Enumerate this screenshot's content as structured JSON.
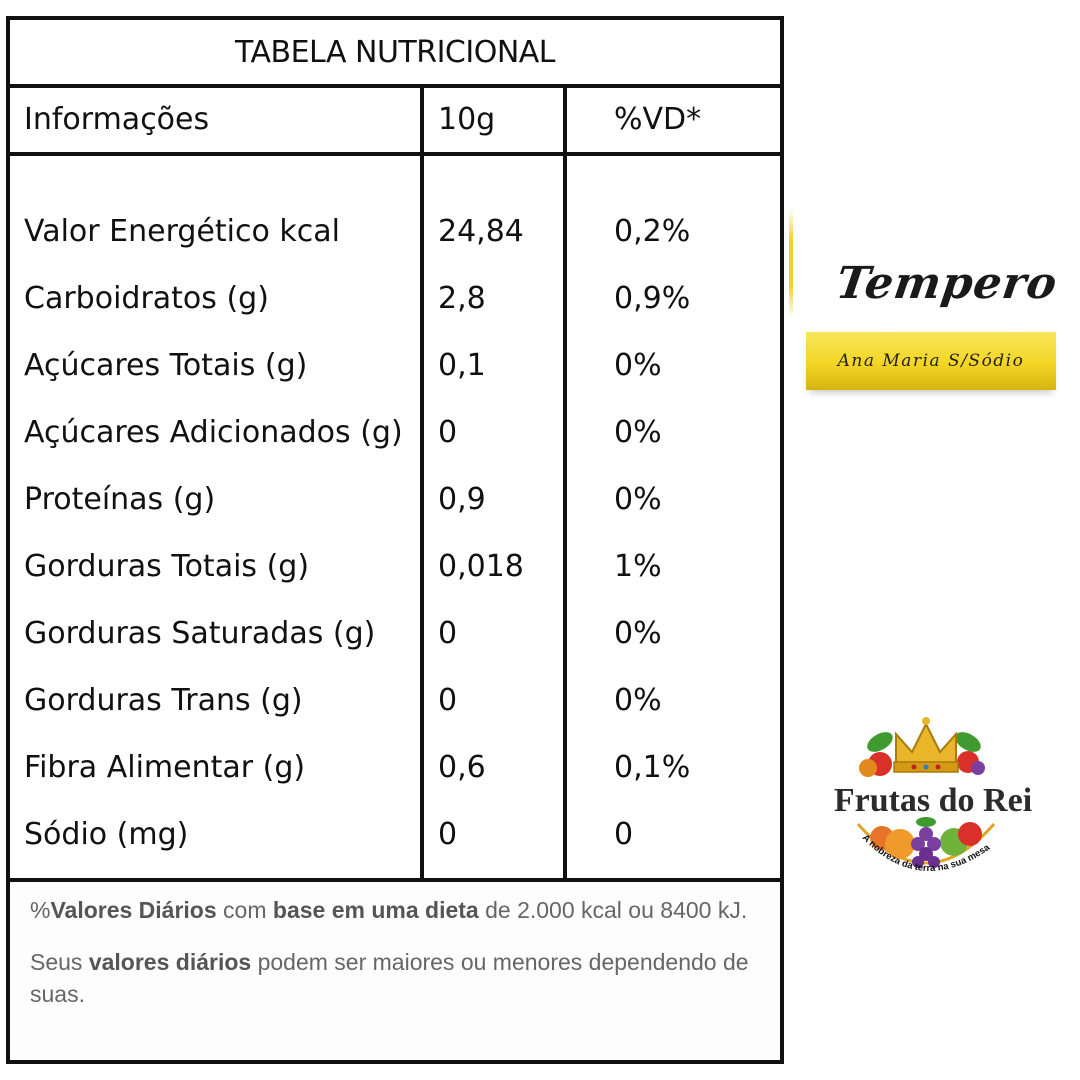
{
  "table": {
    "title": "TABELA NUTRICIONAL",
    "headers": [
      "Informações",
      "10g",
      "%VD*"
    ],
    "rows": [
      {
        "label": "Valor Energético kcal",
        "amount": "24,84",
        "vd": "0,2%"
      },
      {
        "label": "Carboidratos (g)",
        "amount": "2,8",
        "vd": "0,9%"
      },
      {
        "label": "Açúcares Totais (g)",
        "amount": "0,1",
        "vd": "0%"
      },
      {
        "label": "Açúcares Adicionados (g)",
        "amount": "0",
        "vd": "0%"
      },
      {
        "label": "Proteínas (g)",
        "amount": "0,9",
        "vd": "0%"
      },
      {
        "label": "Gorduras Totais (g)",
        "amount": "0,018",
        "vd": "1%"
      },
      {
        "label": "Gorduras Saturadas (g)",
        "amount": "0",
        "vd": "0%"
      },
      {
        "label": "Gorduras Trans (g)",
        "amount": "0",
        "vd": "0%"
      },
      {
        "label": "Fibra Alimentar (g)",
        "amount": "0,6",
        "vd": "0,1%"
      },
      {
        "label": "Sódio (mg)",
        "amount": "0",
        "vd": "0"
      }
    ],
    "footer": {
      "note1": {
        "p1": "%",
        "b1": "Valores Diários",
        "p2": " com ",
        "b2": "base em uma dieta",
        "p3": " de 2.000 kcal ou 8400 kJ."
      },
      "note2": {
        "p1": "Seus ",
        "b1": "valores diários",
        "p2": " podem ser maiores ou menores dependendo de suas."
      }
    }
  },
  "product": {
    "name": "Tempero",
    "variant": "Ana Maria S/Sódio"
  },
  "brand": {
    "name": "Frutas do Rei",
    "slogan": "A nobreza da terra na sua mesa"
  },
  "colors": {
    "gold": "#f3d526",
    "border": "#111111",
    "footer_text": "#666666"
  }
}
